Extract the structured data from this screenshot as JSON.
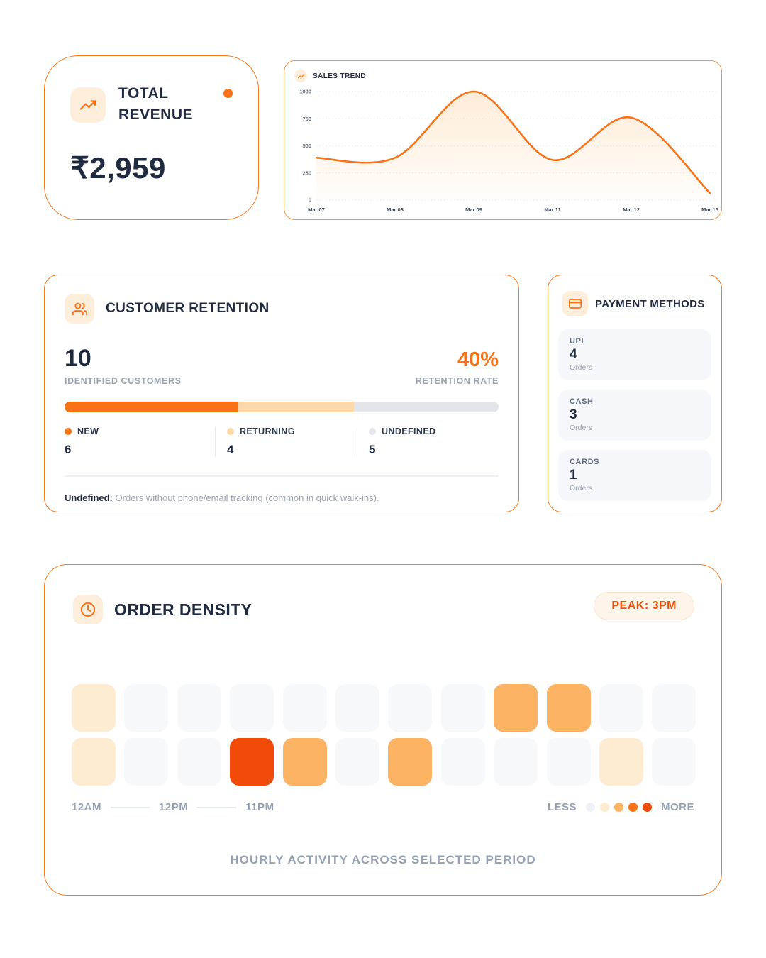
{
  "revenue": {
    "title": "TOTAL REVENUE",
    "value": "₹2,959"
  },
  "chart_data": [
    {
      "type": "line",
      "title": "SALES TREND",
      "x": [
        "Mar 07",
        "Mar 08",
        "Mar 09",
        "Mar 11",
        "Mar 12",
        "Mar 15"
      ],
      "values": [
        390,
        390,
        1000,
        370,
        760,
        65
      ],
      "yticks": [
        0,
        250,
        500,
        750,
        1000
      ],
      "ylim": [
        0,
        1000
      ],
      "xlabel": "",
      "ylabel": "",
      "grid": "dotted horizontal",
      "line_color": "#F97316",
      "area_fill": "#FDBA74"
    },
    {
      "type": "heatmap",
      "title": "ORDER DENSITY",
      "rows": [
        "12AM-11AM",
        "12PM-11PM"
      ],
      "levels": [
        [
          1,
          0,
          0,
          0,
          0,
          0,
          0,
          0,
          2,
          2,
          0,
          0
        ],
        [
          1,
          0,
          0,
          3,
          2,
          0,
          2,
          0,
          0,
          0,
          1,
          0
        ]
      ],
      "level_colors": [
        "#F6F8FA",
        "#FDEBD2",
        "#FCB464",
        "#F24A08"
      ],
      "peak": "3PM"
    }
  ],
  "retention": {
    "title": "CUSTOMER RETENTION",
    "identified": {
      "value": "10",
      "label": "IDENTIFIED CUSTOMERS"
    },
    "rate": {
      "value": "40%",
      "label": "RETENTION RATE"
    },
    "segments": [
      {
        "label": "NEW",
        "value": "6",
        "color": "#F97316"
      },
      {
        "label": "RETURNING",
        "value": "4",
        "color": "#FDD9A9"
      },
      {
        "label": "UNDEFINED",
        "value": "5",
        "color": "#E2E6EB"
      }
    ],
    "track_color": "#E5E7EB",
    "footer_bold": "Undefined:",
    "footer_text": " Orders without phone/email tracking (common in quick walk-ins)."
  },
  "payment": {
    "title": "PAYMENT METHODS",
    "methods": [
      {
        "label": "UPI",
        "value": "4",
        "unit": "Orders"
      },
      {
        "label": "CASH",
        "value": "3",
        "unit": "Orders"
      },
      {
        "label": "CARDS",
        "value": "1",
        "unit": "Orders"
      }
    ]
  },
  "density": {
    "title": "ORDER DENSITY",
    "badge": "PEAK: 3PM",
    "axis_labels": [
      "12AM",
      "12PM",
      "11PM"
    ],
    "legend": {
      "less": "LESS",
      "more": "MORE",
      "dot_colors": [
        "#EEF1F5",
        "#FDEAD0",
        "#FCB464",
        "#F97316",
        "#EF4B08"
      ]
    },
    "caption": "HOURLY ACTIVITY ACROSS SELECTED PERIOD"
  },
  "colors": {
    "accent": "#F97316",
    "accent_dark": "#F04E08",
    "icon_bg": "#FDEEDC",
    "text_dark": "#202B40",
    "text_gray": "#94A1B2"
  }
}
